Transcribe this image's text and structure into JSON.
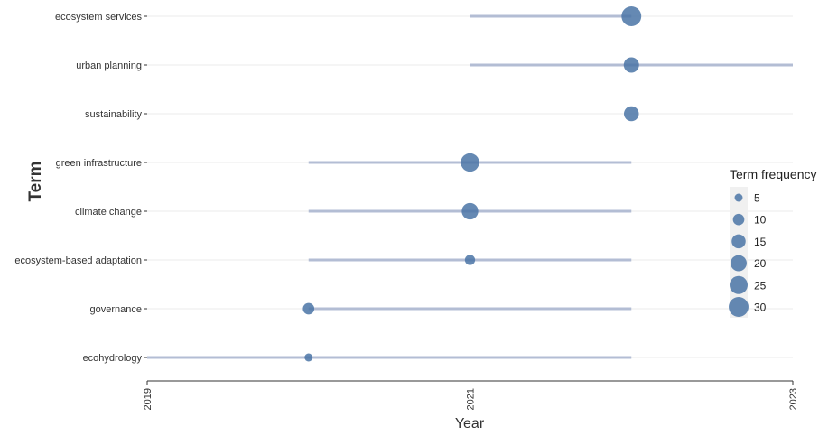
{
  "chart_data": {
    "type": "scatter",
    "title": "",
    "xlabel": "Year",
    "ylabel": "Term",
    "xlim": [
      2019,
      2023
    ],
    "x_ticks": [
      "2019",
      "2021",
      "2023"
    ],
    "grid": true,
    "legend_position": "right",
    "legend_title": "Term frequency",
    "legend_sizes": [
      5,
      10,
      15,
      20,
      25,
      30
    ],
    "colors": {
      "point": "#4a74a6",
      "range_line": "#b3bdd4",
      "grid": "#ebebeb",
      "axis": "#333333",
      "legend_bg": "#f0f0f0"
    },
    "terms": [
      {
        "name": "ecosystem services",
        "start": 2021,
        "end": 2022,
        "peak": 2022,
        "frequency": 30
      },
      {
        "name": "urban planning",
        "start": 2021,
        "end": 2023,
        "peak": 2022,
        "frequency": 18
      },
      {
        "name": "sustainability",
        "start": 2022,
        "end": 2022,
        "peak": 2022,
        "frequency": 17
      },
      {
        "name": "green infrastructure",
        "start": 2020,
        "end": 2022,
        "peak": 2021,
        "frequency": 26
      },
      {
        "name": "climate change",
        "start": 2020,
        "end": 2022,
        "peak": 2021,
        "frequency": 21
      },
      {
        "name": "ecosystem-based adaptation",
        "start": 2020,
        "end": 2022,
        "peak": 2021,
        "frequency": 8
      },
      {
        "name": "governance",
        "start": 2020,
        "end": 2022,
        "peak": 2020,
        "frequency": 10
      },
      {
        "name": "ecohydrology",
        "start": 2019,
        "end": 2022,
        "peak": 2020,
        "frequency": 5
      }
    ]
  }
}
